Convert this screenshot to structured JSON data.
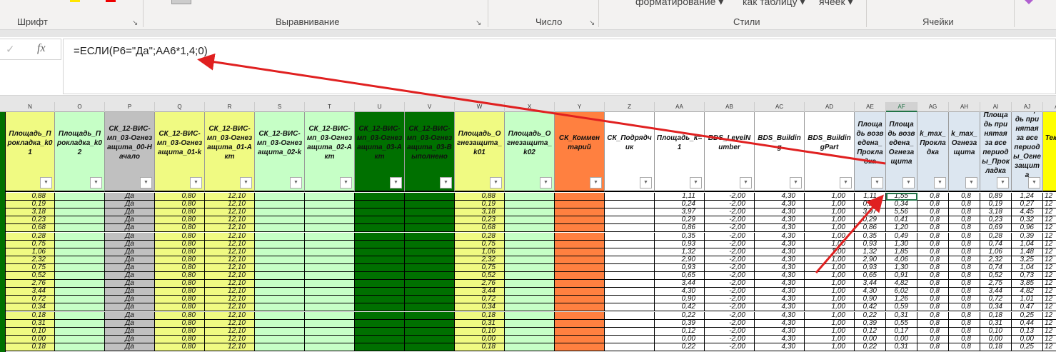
{
  "ribbon": {
    "groups": [
      "Шрифт",
      "Выравнивание",
      "Число",
      "Стили",
      "Ячейки"
    ],
    "styles_buttons": [
      "форматирование",
      "как таблицу",
      "ячеек"
    ]
  },
  "formula_bar": {
    "formula": "=ЕСЛИ(P6=\"Да\";AA6*1,4;0)",
    "enter_icon": "checkmark-icon",
    "fx_label": "fx"
  },
  "selected_cell": "AF6",
  "columns": [
    {
      "letter": "N",
      "header": "Площадь_Прокладка_k01",
      "color": "#f0fa82"
    },
    {
      "letter": "O",
      "header": "Площадь_Прокладка_k02",
      "color": "#c6ffc6"
    },
    {
      "letter": "P",
      "header": "СК_12-ВИС-мп_03-Огнезащита_00-Начало",
      "color": "#c0c0c0"
    },
    {
      "letter": "Q",
      "header": "СК_12-ВИС-мп_03-Огнезащита_01-k",
      "color": "#f0fa82"
    },
    {
      "letter": "R",
      "header": "СК_12-ВИС-мп_03-Огнезащита_01-Акт",
      "color": "#f0fa82"
    },
    {
      "letter": "S",
      "header": "СК_12-ВИС-мп_03-Огнезащита_02-k",
      "color": "#c6ffc6"
    },
    {
      "letter": "T",
      "header": "СК_12-ВИС-мп_03-Огнезащита_02-Акт",
      "color": "#c6ffc6"
    },
    {
      "letter": "U",
      "header": "СК_12-ВИС-мп_03-Огнезащита_03-Акт",
      "color": "#007000"
    },
    {
      "letter": "V",
      "header": "СК_12-ВИС-мп_03-Огнезащита_03-Выполнено",
      "color": "#007000"
    },
    {
      "letter": "W",
      "header": "Площадь_Огнезащита_k01",
      "color": "#f0fa82"
    },
    {
      "letter": "X",
      "header": "Площадь_Огнезащита_k02",
      "color": "#c6ffc6"
    },
    {
      "letter": "Y",
      "header": "СК_Комментарий",
      "color": "#ff8040"
    },
    {
      "letter": "Z",
      "header": "СК_Подрядчик",
      "color": "#ffffff"
    },
    {
      "letter": "AA",
      "header": "Площадь_k=1",
      "color": "#ffffff"
    },
    {
      "letter": "AB",
      "header": "BDS_LevelNumber",
      "color": "#ffffff"
    },
    {
      "letter": "AC",
      "header": "BDS_Building",
      "color": "#ffffff"
    },
    {
      "letter": "AD",
      "header": "BDS_BuildingPart",
      "color": "#ffffff"
    },
    {
      "letter": "AE",
      "header": "Площадь возведена_Прокладка",
      "color": "#dce6f0"
    },
    {
      "letter": "AF",
      "header": "Площадь возведена_Огнезащита",
      "color": "#dce6f0"
    },
    {
      "letter": "AG",
      "header": "k_max_Прокладка",
      "color": "#dce6f0"
    },
    {
      "letter": "AH",
      "header": "k_max_Огнезащита",
      "color": "#dce6f0"
    },
    {
      "letter": "AI",
      "header": "Площадь принятая за все периоды_Прокладка",
      "color": "#dce6f0"
    },
    {
      "letter": "AJ",
      "header": "Площадь принятая за все периоды_Огнезащита",
      "color": "#dce6f0"
    },
    {
      "letter": "AK",
      "header": "Текущий",
      "color": "#ffff00"
    }
  ],
  "rows": [
    [
      "0,88",
      "",
      "Да",
      "0,80",
      "12,10",
      "",
      "",
      "",
      "",
      "0,88",
      "",
      "",
      "",
      "1,11",
      "-2,00",
      "4,30",
      "1,00",
      "1,11",
      "1,55",
      "0,8",
      "0,8",
      "0,89",
      "1,24",
      "12"
    ],
    [
      "0,19",
      "",
      "Да",
      "0,80",
      "12,10",
      "",
      "",
      "",
      "",
      "0,19",
      "",
      "",
      "",
      "0,24",
      "-2,00",
      "4,30",
      "1,00",
      "0,24",
      "0,34",
      "0,8",
      "0,8",
      "0,19",
      "0,27",
      "12"
    ],
    [
      "3,18",
      "",
      "Да",
      "0,80",
      "12,10",
      "",
      "",
      "",
      "",
      "3,18",
      "",
      "",
      "",
      "3,97",
      "-2,00",
      "4,30",
      "1,00",
      "3,97",
      "5,56",
      "0,8",
      "0,8",
      "3,18",
      "4,45",
      "12"
    ],
    [
      "0,23",
      "",
      "Да",
      "0,80",
      "12,10",
      "",
      "",
      "",
      "",
      "0,23",
      "",
      "",
      "",
      "0,29",
      "-2,00",
      "4,30",
      "1,00",
      "0,29",
      "0,41",
      "0,8",
      "0,8",
      "0,23",
      "0,32",
      "12"
    ],
    [
      "0,68",
      "",
      "Да",
      "0,80",
      "12,10",
      "",
      "",
      "",
      "",
      "0,68",
      "",
      "",
      "",
      "0,86",
      "-2,00",
      "4,30",
      "1,00",
      "0,86",
      "1,20",
      "0,8",
      "0,8",
      "0,69",
      "0,96",
      "12"
    ],
    [
      "0,28",
      "",
      "Да",
      "0,80",
      "12,10",
      "",
      "",
      "",
      "",
      "0,28",
      "",
      "",
      "",
      "0,35",
      "-2,00",
      "4,30",
      "1,00",
      "0,35",
      "0,49",
      "0,8",
      "0,8",
      "0,28",
      "0,39",
      "12"
    ],
    [
      "0,75",
      "",
      "Да",
      "0,80",
      "12,10",
      "",
      "",
      "",
      "",
      "0,75",
      "",
      "",
      "",
      "0,93",
      "-2,00",
      "4,30",
      "1,00",
      "0,93",
      "1,30",
      "0,8",
      "0,8",
      "0,74",
      "1,04",
      "12"
    ],
    [
      "1,06",
      "",
      "Да",
      "0,80",
      "12,10",
      "",
      "",
      "",
      "",
      "1,06",
      "",
      "",
      "",
      "1,32",
      "-2,00",
      "4,30",
      "1,00",
      "1,32",
      "1,85",
      "0,8",
      "0,8",
      "1,06",
      "1,48",
      "12"
    ],
    [
      "2,32",
      "",
      "Да",
      "0,80",
      "12,10",
      "",
      "",
      "",
      "",
      "2,32",
      "",
      "",
      "",
      "2,90",
      "-2,00",
      "4,30",
      "1,00",
      "2,90",
      "4,06",
      "0,8",
      "0,8",
      "2,32",
      "3,25",
      "12"
    ],
    [
      "0,75",
      "",
      "Да",
      "0,80",
      "12,10",
      "",
      "",
      "",
      "",
      "0,75",
      "",
      "",
      "",
      "0,93",
      "-2,00",
      "4,30",
      "1,00",
      "0,93",
      "1,30",
      "0,8",
      "0,8",
      "0,74",
      "1,04",
      "12"
    ],
    [
      "0,52",
      "",
      "Да",
      "0,80",
      "12,10",
      "",
      "",
      "",
      "",
      "0,52",
      "",
      "",
      "",
      "0,65",
      "-2,00",
      "4,30",
      "1,00",
      "0,65",
      "0,91",
      "0,8",
      "0,8",
      "0,52",
      "0,73",
      "12"
    ],
    [
      "2,76",
      "",
      "Да",
      "0,80",
      "12,10",
      "",
      "",
      "",
      "",
      "2,76",
      "",
      "",
      "",
      "3,44",
      "-2,00",
      "4,30",
      "1,00",
      "3,44",
      "4,82",
      "0,8",
      "0,8",
      "2,75",
      "3,85",
      "12"
    ],
    [
      "3,44",
      "",
      "Да",
      "0,80",
      "12,10",
      "",
      "",
      "",
      "",
      "3,44",
      "",
      "",
      "",
      "4,30",
      "-2,00",
      "4,30",
      "1,00",
      "4,30",
      "6,02",
      "0,8",
      "0,8",
      "3,44",
      "4,82",
      "12"
    ],
    [
      "0,72",
      "",
      "Да",
      "0,80",
      "12,10",
      "",
      "",
      "",
      "",
      "0,72",
      "",
      "",
      "",
      "0,90",
      "-2,00",
      "4,30",
      "1,00",
      "0,90",
      "1,26",
      "0,8",
      "0,8",
      "0,72",
      "1,01",
      "12"
    ],
    [
      "0,34",
      "",
      "Да",
      "0,80",
      "12,10",
      "",
      "",
      "",
      "",
      "0,34",
      "",
      "",
      "",
      "0,42",
      "-2,00",
      "4,30",
      "1,00",
      "0,42",
      "0,59",
      "0,8",
      "0,8",
      "0,34",
      "0,47",
      "12"
    ],
    [
      "0,18",
      "",
      "Да",
      "0,80",
      "12,10",
      "",
      "",
      "",
      "",
      "0,18",
      "",
      "",
      "",
      "0,22",
      "-2,00",
      "4,30",
      "1,00",
      "0,22",
      "0,31",
      "0,8",
      "0,8",
      "0,18",
      "0,25",
      "12"
    ],
    [
      "0,31",
      "",
      "Да",
      "0,80",
      "12,10",
      "",
      "",
      "",
      "",
      "0,31",
      "",
      "",
      "",
      "0,39",
      "-2,00",
      "4,30",
      "1,00",
      "0,39",
      "0,55",
      "0,8",
      "0,8",
      "0,31",
      "0,44",
      "12"
    ],
    [
      "0,10",
      "",
      "Да",
      "0,80",
      "12,10",
      "",
      "",
      "",
      "",
      "0,10",
      "",
      "",
      "",
      "0,12",
      "-2,00",
      "4,30",
      "1,00",
      "0,12",
      "0,17",
      "0,8",
      "0,8",
      "0,10",
      "0,13",
      "12"
    ],
    [
      "0,00",
      "",
      "Да",
      "0,80",
      "12,10",
      "",
      "",
      "",
      "",
      "0,00",
      "",
      "",
      "",
      "0,00",
      "-2,00",
      "4,30",
      "1,00",
      "0,00",
      "0,00",
      "0,8",
      "0,8",
      "0,00",
      "0,00",
      "12"
    ],
    [
      "0,18",
      "",
      "Да",
      "0,80",
      "12,10",
      "",
      "",
      "",
      "",
      "0,18",
      "",
      "",
      "",
      "0,22",
      "-2,00",
      "4,30",
      "1,00",
      "0,22",
      "0,31",
      "0,8",
      "0,8",
      "0,18",
      "0,25",
      "12"
    ]
  ],
  "annotation_color": "#e02020"
}
